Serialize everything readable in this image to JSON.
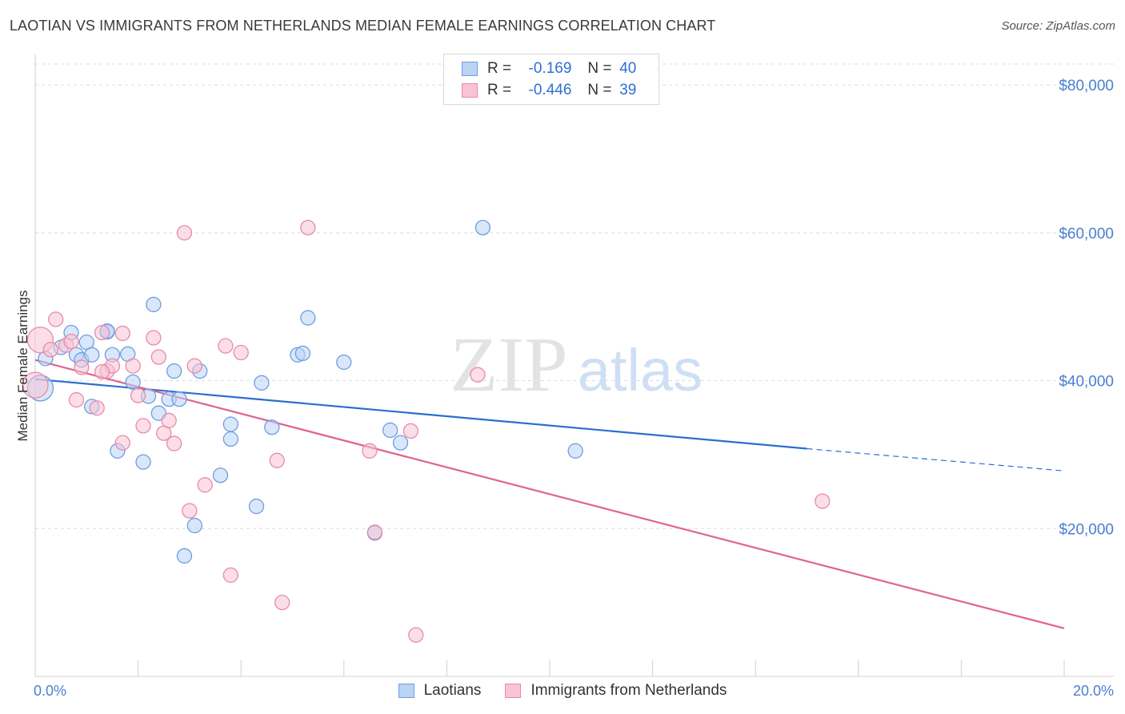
{
  "title": "LAOTIAN VS IMMIGRANTS FROM NETHERLANDS MEDIAN FEMALE EARNINGS CORRELATION CHART",
  "source": "Source: ZipAtlas.com",
  "watermark": {
    "zip": "ZIP",
    "atlas": "atlas"
  },
  "legend": {
    "rows": [
      {
        "r_label": "R =",
        "r_value": "-0.169",
        "n_label": "N =",
        "n_value": "40"
      },
      {
        "r_label": "R =",
        "r_value": "-0.446",
        "n_label": "N =",
        "n_value": "39"
      }
    ]
  },
  "colors": {
    "blue_fill": "#b9d3f5",
    "blue_stroke": "#6f9de0",
    "blue_line": "#2a6fd0",
    "pink_fill": "#f8c3d4",
    "pink_stroke": "#e88aa9",
    "pink_line": "#e0648e",
    "grid": "#dcdcdc",
    "tick_text": "#4a7fcf"
  },
  "chart_data": {
    "type": "scatter",
    "xlabel": "",
    "ylabel": "Median Female Earnings",
    "xlim": [
      0,
      20
    ],
    "ylim": [
      0,
      82000
    ],
    "x_tick_labels": [
      {
        "x": 0,
        "label": "0.0%"
      },
      {
        "x": 20,
        "label": "20.0%"
      }
    ],
    "y_ticks": [
      20000,
      40000,
      60000,
      80000
    ],
    "y_tick_labels": [
      "$20,000",
      "$40,000",
      "$60,000",
      "$80,000"
    ],
    "grid": true,
    "legend_position": "bottom",
    "series": [
      {
        "name": "Laotians",
        "color": "#6f9de0",
        "points": [
          [
            0.2,
            43000
          ],
          [
            0.5,
            44500
          ],
          [
            0.7,
            46500
          ],
          [
            0.8,
            43500
          ],
          [
            0.9,
            42800
          ],
          [
            1.0,
            45200
          ],
          [
            1.1,
            36500
          ],
          [
            1.1,
            43500
          ],
          [
            1.4,
            46600
          ],
          [
            1.5,
            43500
          ],
          [
            1.6,
            30500
          ],
          [
            1.8,
            43600
          ],
          [
            1.9,
            39800
          ],
          [
            2.1,
            29000
          ],
          [
            2.2,
            37900
          ],
          [
            2.3,
            50300
          ],
          [
            2.4,
            35600
          ],
          [
            2.6,
            37500
          ],
          [
            2.7,
            41300
          ],
          [
            2.8,
            37500
          ],
          [
            2.9,
            16300
          ],
          [
            3.1,
            20400
          ],
          [
            3.2,
            41300
          ],
          [
            3.6,
            27200
          ],
          [
            3.8,
            34100
          ],
          [
            3.8,
            32100
          ],
          [
            4.3,
            23000
          ],
          [
            4.4,
            39700
          ],
          [
            4.6,
            33700
          ],
          [
            5.1,
            43500
          ],
          [
            5.2,
            43700
          ],
          [
            5.3,
            48500
          ],
          [
            6.0,
            42500
          ],
          [
            6.6,
            19400
          ],
          [
            6.9,
            33300
          ],
          [
            7.1,
            31600
          ],
          [
            8.7,
            60700
          ],
          [
            10.5,
            30500
          ],
          [
            0.1,
            39000
          ],
          [
            1.4,
            46700
          ]
        ]
      },
      {
        "name": "Immigrants from Netherlands",
        "color": "#e88aa9",
        "points": [
          [
            0.1,
            45500
          ],
          [
            0.3,
            44200
          ],
          [
            0.4,
            48300
          ],
          [
            0.6,
            44800
          ],
          [
            0.7,
            45300
          ],
          [
            0.8,
            37400
          ],
          [
            0.9,
            41800
          ],
          [
            1.2,
            36300
          ],
          [
            1.3,
            46500
          ],
          [
            1.4,
            41300
          ],
          [
            1.5,
            42000
          ],
          [
            1.7,
            46400
          ],
          [
            1.7,
            31600
          ],
          [
            1.9,
            42000
          ],
          [
            2.0,
            38000
          ],
          [
            2.1,
            33900
          ],
          [
            2.3,
            45800
          ],
          [
            2.4,
            43200
          ],
          [
            2.5,
            32900
          ],
          [
            2.6,
            34600
          ],
          [
            2.7,
            31500
          ],
          [
            2.9,
            60000
          ],
          [
            3.0,
            22400
          ],
          [
            3.1,
            42000
          ],
          [
            3.3,
            25900
          ],
          [
            3.7,
            44700
          ],
          [
            3.8,
            13700
          ],
          [
            4.0,
            43800
          ],
          [
            4.7,
            29200
          ],
          [
            4.8,
            10000
          ],
          [
            5.3,
            60700
          ],
          [
            6.5,
            30500
          ],
          [
            6.6,
            19500
          ],
          [
            7.3,
            33200
          ],
          [
            7.4,
            5600
          ],
          [
            8.6,
            40800
          ],
          [
            15.3,
            23700
          ],
          [
            0.0,
            39400
          ],
          [
            1.3,
            41200
          ]
        ]
      }
    ],
    "trend_lines": [
      {
        "series": "Laotians",
        "from": [
          0,
          40200
        ],
        "to": [
          15.0,
          30800
        ],
        "dashed_to": [
          20,
          27800
        ]
      },
      {
        "series": "Immigrants from Netherlands",
        "from": [
          0,
          42800
        ],
        "to": [
          20,
          6500
        ]
      }
    ]
  }
}
